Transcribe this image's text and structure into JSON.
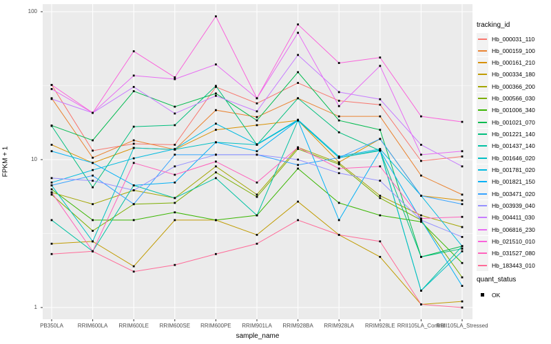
{
  "chart_data": {
    "type": "line",
    "title": "",
    "xlabel": "sample_name",
    "ylabel": "FPKM + 1",
    "yscale": "log10",
    "ylim": [
      1,
      100
    ],
    "y_major_ticks": [
      100,
      10,
      1
    ],
    "y_major_tick_labels": [
      "100",
      "10",
      "1"
    ],
    "y_minor_ticks": [
      31.623,
      3.1623
    ],
    "grid": "on",
    "panel_bg": "#EBEBEB",
    "grid_color": "#FFFFFF",
    "point_color": "#000000",
    "tick_label_color": "#4D4D4D",
    "categories": [
      "PB350LA",
      "RRIM600LA",
      "RRIM600LE",
      "RRIM600SE",
      "RRIM600PE",
      "RRIM901LA",
      "RRIM928BA",
      "RRIM928LA",
      "RRIM928LE",
      "RRII105LA_Control",
      "RRII105LA_Stressed"
    ],
    "legend": {
      "title": "tracking_id",
      "position": "right"
    },
    "quant_legend": {
      "title": "quant_status",
      "items": [
        {
          "label": "OK",
          "marker": "black-square"
        }
      ]
    },
    "series": [
      {
        "name": "Hb_000031_110",
        "color": "#F8766D",
        "values": [
          32,
          11.5,
          12.8,
          12.6,
          31,
          24,
          33,
          25,
          23.5,
          9.8,
          10.5
        ]
      },
      {
        "name": "Hb_000159_100",
        "color": "#EA8331",
        "values": [
          26,
          10.3,
          13.5,
          11.7,
          21.6,
          19.4,
          26,
          19.6,
          19.6,
          7.8,
          5.8
        ]
      },
      {
        "name": "Hb_000161_210",
        "color": "#D89000",
        "values": [
          12.6,
          9.5,
          12.0,
          11.7,
          15.9,
          17.1,
          18.4,
          9.6,
          13.8,
          5.7,
          5.3
        ]
      },
      {
        "name": "Hb_000334_180",
        "color": "#C09B00",
        "values": [
          2.7,
          2.8,
          1.9,
          3.9,
          3.9,
          3.1,
          5.2,
          3.1,
          2.2,
          1.05,
          1.1
        ]
      },
      {
        "name": "Hb_000366_200",
        "color": "#A3A500",
        "values": [
          6.0,
          5.0,
          6.2,
          5.5,
          9.0,
          5.8,
          12.1,
          9.5,
          5.7,
          4.2,
          3.5
        ]
      },
      {
        "name": "Hb_000566_030",
        "color": "#7CAE00",
        "values": [
          5.8,
          3.3,
          5.0,
          5.1,
          8.2,
          5.6,
          11.8,
          9.3,
          5.5,
          3.9,
          1.6
        ]
      },
      {
        "name": "Hb_001006_340",
        "color": "#39B600",
        "values": [
          6.3,
          3.9,
          3.9,
          4.4,
          3.9,
          4.2,
          8.7,
          5.1,
          4.2,
          3.8,
          2.0
        ]
      },
      {
        "name": "Hb_001021_070",
        "color": "#00BB4E",
        "values": [
          17,
          13.5,
          29,
          22.8,
          28,
          18.4,
          39,
          18.4,
          15.9,
          2.2,
          2.6
        ]
      },
      {
        "name": "Hb_001221_140",
        "color": "#00BF7D",
        "values": [
          16.9,
          6.5,
          16.7,
          17.1,
          31.5,
          12.6,
          26,
          15.3,
          11.5,
          2.2,
          2.5
        ]
      },
      {
        "name": "Hb_001437_140",
        "color": "#00C1A3",
        "values": [
          3.9,
          2.4,
          6.7,
          5.5,
          7.5,
          4.2,
          18.4,
          10.3,
          11.5,
          1.3,
          2.6
        ]
      },
      {
        "name": "Hb_001646_020",
        "color": "#00BFC4",
        "values": [
          6.7,
          2.8,
          12.0,
          11.7,
          13.1,
          12.6,
          18.4,
          10.3,
          11.6,
          1.3,
          2.4
        ]
      },
      {
        "name": "Hb_001781_020",
        "color": "#00BAE0",
        "values": [
          7.0,
          8.5,
          10.2,
          11.8,
          17.5,
          12.7,
          18.6,
          10.5,
          11.8,
          5.7,
          2.6
        ]
      },
      {
        "name": "Hb_001821_150",
        "color": "#00B0F6",
        "values": [
          11.4,
          9.5,
          6.7,
          7.0,
          13.1,
          11.4,
          18.4,
          3.9,
          11.5,
          3.9,
          1.4
        ]
      },
      {
        "name": "Hb_003471_020",
        "color": "#35A2FF",
        "values": [
          6.7,
          7.8,
          5.0,
          10.8,
          10.8,
          10.8,
          9.2,
          10.3,
          13.8,
          5.7,
          5.0
        ]
      },
      {
        "name": "Hb_003939_040",
        "color": "#9590FF",
        "values": [
          7.5,
          7.2,
          6.2,
          9.0,
          10.8,
          10.8,
          10.0,
          8.1,
          7.2,
          3.9,
          3.0
        ]
      },
      {
        "name": "Hb_004411_030",
        "color": "#C77CFF",
        "values": [
          25.7,
          20.7,
          31,
          20.5,
          27,
          21.2,
          51,
          28.6,
          25.6,
          12.6,
          9.0
        ]
      },
      {
        "name": "Hb_006816_230",
        "color": "#E76BF3",
        "values": [
          30,
          20.7,
          37,
          35,
          44,
          26,
          72,
          23,
          43,
          10.8,
          11.4
        ]
      },
      {
        "name": "Hb_021510_010",
        "color": "#FA62DB",
        "values": [
          32,
          20.7,
          54,
          36,
          93,
          26,
          82,
          45,
          49,
          19.6,
          18
        ]
      },
      {
        "name": "Hb_031527_080",
        "color": "#FF62BC",
        "values": [
          6.0,
          2.4,
          9.5,
          7.9,
          9.7,
          7.0,
          12.1,
          8.7,
          9.0,
          4.0,
          4.1
        ]
      },
      {
        "name": "Hb_183443_010",
        "color": "#FF6A98",
        "values": [
          2.3,
          2.4,
          1.75,
          1.94,
          2.3,
          2.7,
          3.9,
          3.1,
          2.8,
          1.05,
          1.0
        ]
      }
    ]
  }
}
